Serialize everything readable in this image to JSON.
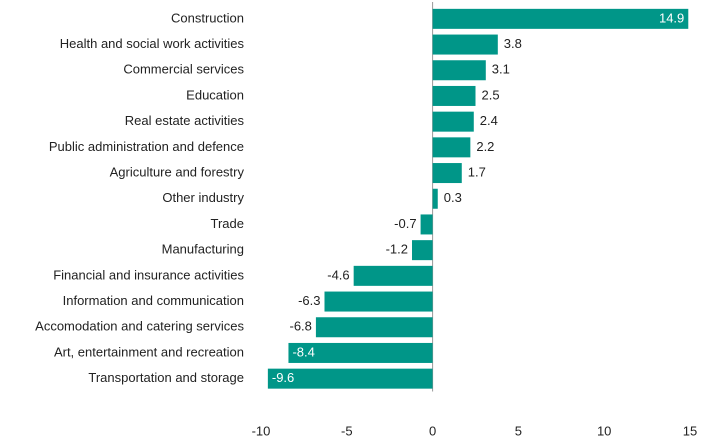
{
  "chart_data": {
    "type": "bar",
    "orientation": "horizontal",
    "categories": [
      "Construction",
      "Health and social work activities",
      "Commercial services",
      "Education",
      "Real estate activities",
      "Public administration and defence",
      "Agriculture and forestry",
      "Other industry",
      "Trade",
      "Manufacturing",
      "Financial and insurance activities",
      "Information and communication",
      "Accomodation and catering services",
      "Art, entertainment and recreation",
      "Transportation and storage"
    ],
    "values": [
      14.9,
      3.8,
      3.1,
      2.5,
      2.4,
      2.2,
      1.7,
      0.3,
      -0.7,
      -1.2,
      -4.6,
      -6.3,
      -6.8,
      -8.4,
      -9.6
    ],
    "color": "#009688",
    "xlim": [
      -10,
      15
    ],
    "xticks": [
      -10,
      -5,
      0,
      5,
      10,
      15
    ]
  }
}
